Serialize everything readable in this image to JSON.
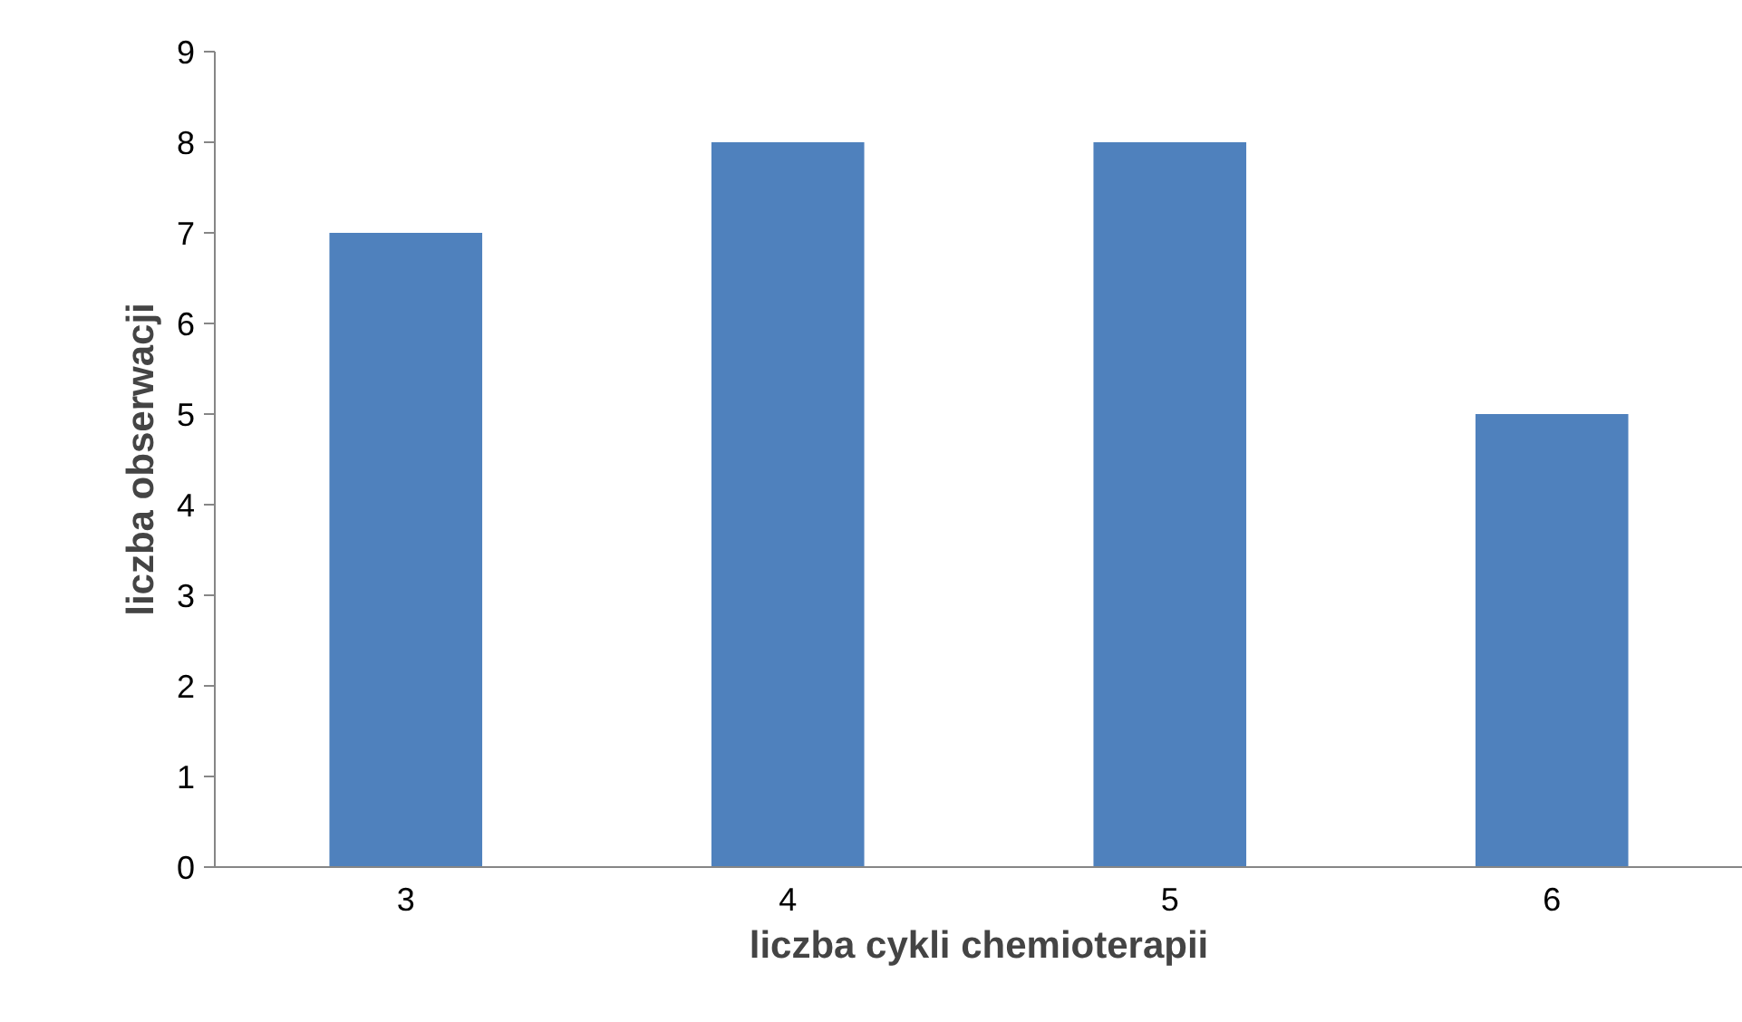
{
  "chart_data": {
    "type": "bar",
    "xlabel": "liczba cykli chemioterapii",
    "ylabel": "liczba obserwacji",
    "categories": [
      "3",
      "4",
      "5",
      "6"
    ],
    "values": [
      7,
      8,
      8,
      5
    ],
    "color": "#4f81bd",
    "ylim": [
      0,
      9
    ],
    "yticks": [
      0,
      1,
      2,
      3,
      4,
      5,
      6,
      7,
      8,
      9
    ],
    "grid": false
  }
}
